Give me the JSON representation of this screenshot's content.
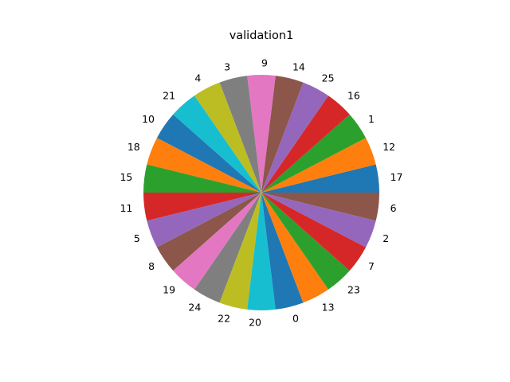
{
  "chart_data": {
    "type": "pie",
    "title": "validation1",
    "start_angle_deg": 0,
    "direction": "counterclockwise",
    "slices": [
      {
        "label": "17",
        "value": 1,
        "color": "#1f77b4"
      },
      {
        "label": "12",
        "value": 1,
        "color": "#ff7f0e"
      },
      {
        "label": "1",
        "value": 1,
        "color": "#2ca02c"
      },
      {
        "label": "16",
        "value": 1,
        "color": "#d62728"
      },
      {
        "label": "25",
        "value": 1,
        "color": "#9467bd"
      },
      {
        "label": "14",
        "value": 1,
        "color": "#8c564b"
      },
      {
        "label": "9",
        "value": 1,
        "color": "#e377c2"
      },
      {
        "label": "3",
        "value": 1,
        "color": "#7f7f7f"
      },
      {
        "label": "4",
        "value": 1,
        "color": "#bcbd22"
      },
      {
        "label": "21",
        "value": 1,
        "color": "#17becf"
      },
      {
        "label": "10",
        "value": 1,
        "color": "#1f77b4"
      },
      {
        "label": "18",
        "value": 1,
        "color": "#ff7f0e"
      },
      {
        "label": "15",
        "value": 1,
        "color": "#2ca02c"
      },
      {
        "label": "11",
        "value": 1,
        "color": "#d62728"
      },
      {
        "label": "5",
        "value": 1,
        "color": "#9467bd"
      },
      {
        "label": "8",
        "value": 1,
        "color": "#8c564b"
      },
      {
        "label": "19",
        "value": 1,
        "color": "#e377c2"
      },
      {
        "label": "24",
        "value": 1,
        "color": "#7f7f7f"
      },
      {
        "label": "22",
        "value": 1,
        "color": "#bcbd22"
      },
      {
        "label": "20",
        "value": 1,
        "color": "#17becf"
      },
      {
        "label": "0",
        "value": 1,
        "color": "#1f77b4"
      },
      {
        "label": "13",
        "value": 1,
        "color": "#ff7f0e"
      },
      {
        "label": "23",
        "value": 1,
        "color": "#2ca02c"
      },
      {
        "label": "7",
        "value": 1,
        "color": "#d62728"
      },
      {
        "label": "2",
        "value": 1,
        "color": "#9467bd"
      },
      {
        "label": "6",
        "value": 1,
        "color": "#8c564b"
      }
    ]
  }
}
